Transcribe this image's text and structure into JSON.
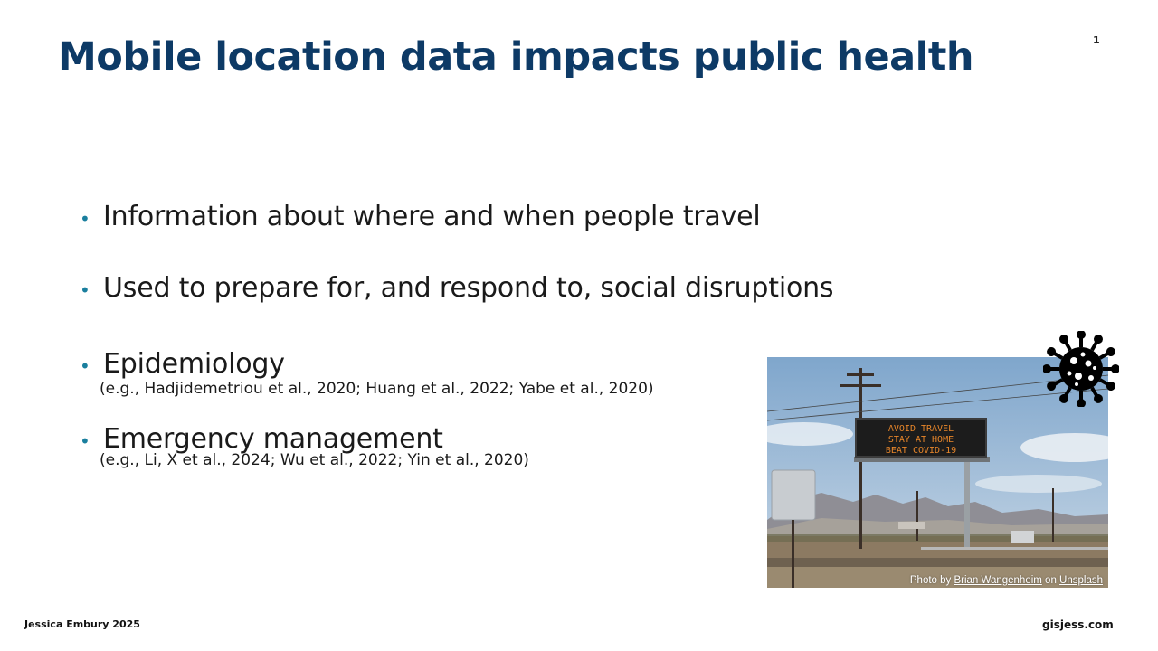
{
  "slide": {
    "title": "Mobile location data impacts public health",
    "number": "1",
    "bullets": [
      {
        "text": "Information about where and when people travel"
      },
      {
        "text": "Used to prepare for, and respond to, social disruptions"
      },
      {
        "text": "Epidemiology",
        "citation": "(e.g., Hadjidemetriou et al., 2020; Huang et al., 2022; Yabe et al., 2020)"
      },
      {
        "text": "Emergency management",
        "citation": "(e.g., Li, X et al., 2024; Wu et al., 2022; Yin et al., 2020)"
      }
    ],
    "photo": {
      "sign_lines": [
        "AVOID TRAVEL",
        "STAY AT HOME",
        "BEAT COVID-19"
      ],
      "credit_prefix": "Photo by ",
      "credit_author": "Brian Wangenheim",
      "credit_mid": " on ",
      "credit_site": "Unsplash"
    },
    "icon": "coronavirus-icon"
  },
  "footer": {
    "left": "Jessica Embury 2025",
    "right": "gisjess.com"
  },
  "colors": {
    "title": "#0d3a66",
    "bullet_dot": "#1a7f9e",
    "sign_text": "#e8862a"
  }
}
